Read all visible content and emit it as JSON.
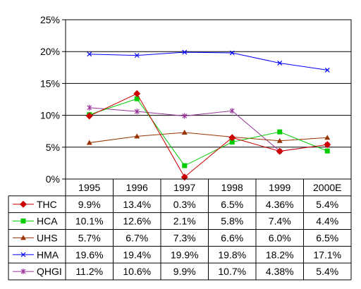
{
  "chart_data": {
    "type": "line",
    "categories": [
      "1995",
      "1996",
      "1997",
      "1998",
      "1999",
      "2000E"
    ],
    "ylim": [
      0,
      25
    ],
    "y_ticks": [
      "0%",
      "5%",
      "10%",
      "15%",
      "20%",
      "25%"
    ],
    "grid": true,
    "legend": "data-table",
    "series": [
      {
        "name": "THC",
        "color": "#cc0000",
        "marker": "diamond",
        "values": [
          9.9,
          13.4,
          0.3,
          6.5,
          4.36,
          5.4
        ],
        "labels": [
          "9.9%",
          "13.4%",
          "0.3%",
          "6.5%",
          "4.36%",
          "5.4%"
        ]
      },
      {
        "name": "HCA",
        "color": "#00cc00",
        "marker": "square",
        "values": [
          10.1,
          12.6,
          2.1,
          5.8,
          7.4,
          4.4
        ],
        "labels": [
          "10.1%",
          "12.6%",
          "2.1%",
          "5.8%",
          "7.4%",
          "4.4%"
        ]
      },
      {
        "name": "UHS",
        "color": "#993300",
        "marker": "triangle",
        "values": [
          5.7,
          6.7,
          7.3,
          6.6,
          6.0,
          6.5
        ],
        "labels": [
          "5.7%",
          "6.7%",
          "7.3%",
          "6.6%",
          "6.0%",
          "6.5%"
        ]
      },
      {
        "name": "HMA",
        "color": "#0000ff",
        "marker": "x",
        "values": [
          19.6,
          19.4,
          19.9,
          19.8,
          18.2,
          17.1
        ],
        "labels": [
          "19.6%",
          "19.4%",
          "19.9%",
          "19.8%",
          "18.2%",
          "17.1%"
        ]
      },
      {
        "name": "QHGI",
        "color": "#993399",
        "marker": "star",
        "values": [
          11.2,
          10.6,
          9.9,
          10.7,
          4.38,
          5.4
        ],
        "labels": [
          "11.2%",
          "10.6%",
          "9.9%",
          "10.7%",
          "4.38%",
          "5.4%"
        ]
      }
    ]
  }
}
